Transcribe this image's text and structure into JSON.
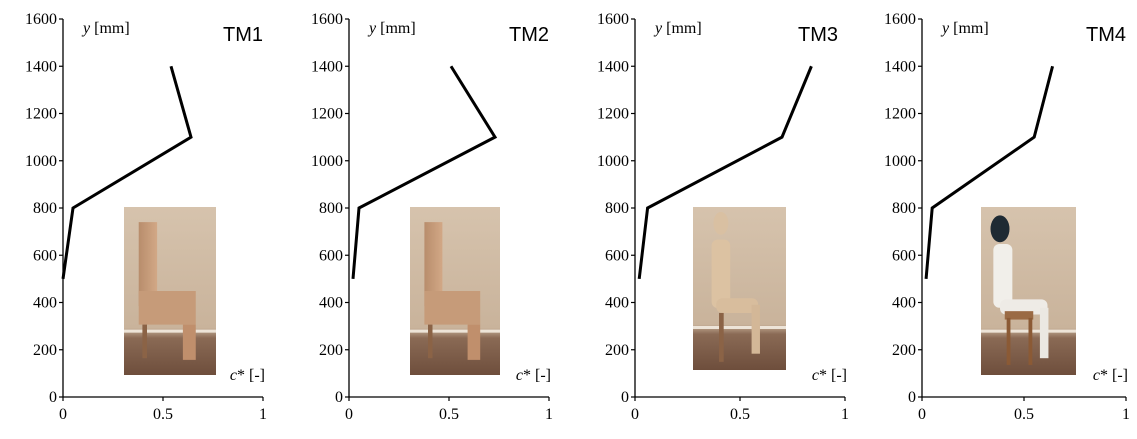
{
  "chart_data": [
    {
      "type": "line",
      "title": "TM1",
      "ylabel": "y [mm]",
      "xlabel": "c* [-]",
      "xlim": [
        0,
        1
      ],
      "ylim": [
        0,
        1600
      ],
      "xticks": [
        "0",
        "0.5",
        "1"
      ],
      "yticks": [
        "0",
        "200",
        "400",
        "600",
        "800",
        "1000",
        "1200",
        "1400",
        "1600"
      ],
      "grid": false,
      "inset_image": "wooden chair mannequin photo",
      "series": [
        {
          "x": [
            0.0,
            0.05,
            0.64,
            0.54
          ],
          "y": [
            500,
            800,
            1100,
            1400
          ]
        }
      ]
    },
    {
      "type": "line",
      "title": "TM2",
      "ylabel": "y [mm]",
      "xlabel": "c* [-]",
      "xlim": [
        0,
        1
      ],
      "ylim": [
        0,
        1600
      ],
      "xticks": [
        "0",
        "0.5",
        "1"
      ],
      "yticks": [
        "0",
        "200",
        "400",
        "600",
        "800",
        "1000",
        "1200",
        "1400",
        "1600"
      ],
      "grid": false,
      "inset_image": "wooden chair mannequin photo",
      "series": [
        {
          "x": [
            0.02,
            0.05,
            0.73,
            0.51
          ],
          "y": [
            500,
            800,
            1100,
            1400
          ]
        }
      ]
    },
    {
      "type": "line",
      "title": "TM3",
      "ylabel": "y [mm]",
      "xlabel": "c* [-]",
      "xlim": [
        0,
        1
      ],
      "ylim": [
        0,
        1600
      ],
      "xticks": [
        "0",
        "0.5",
        "1"
      ],
      "yticks": [
        "0",
        "200",
        "400",
        "600",
        "800",
        "1000",
        "1200",
        "1400",
        "1600"
      ],
      "grid": false,
      "inset_image": "seated articulated mannequin photo",
      "series": [
        {
          "x": [
            0.02,
            0.06,
            0.7,
            0.84
          ],
          "y": [
            500,
            800,
            1100,
            1400
          ]
        }
      ]
    },
    {
      "type": "line",
      "title": "TM4",
      "ylabel": "y [mm]",
      "xlabel": "c* [-]",
      "xlim": [
        0,
        1
      ],
      "ylim": [
        0,
        1600
      ],
      "xticks": [
        "0",
        "0.5",
        "1"
      ],
      "yticks": [
        "0",
        "200",
        "400",
        "600",
        "800",
        "1000",
        "1200",
        "1400",
        "1600"
      ],
      "grid": false,
      "inset_image": "clothed seated mannequin photo",
      "series": [
        {
          "x": [
            0.02,
            0.05,
            0.55,
            0.64
          ],
          "y": [
            500,
            800,
            1100,
            1400
          ]
        }
      ]
    }
  ]
}
